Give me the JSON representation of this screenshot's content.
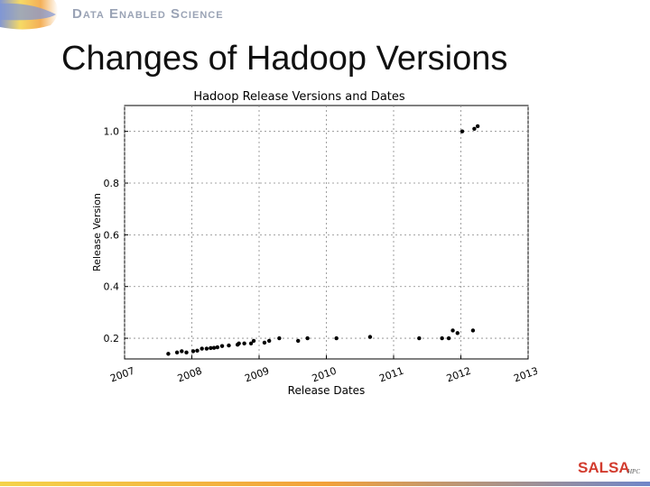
{
  "header": {
    "brand": "Data Enabled Science"
  },
  "slide": {
    "title": "Changes of Hadoop Versions"
  },
  "footer": {
    "logo_text": "SALSA",
    "logo_sub": "HPC"
  },
  "colors": {
    "header_blue": "#6f86c9",
    "header_yellow": "#f4d34a",
    "header_orange": "#f2a13a",
    "brand_gray": "#9aa3b5",
    "logo_red": "#d23b2e",
    "logo_blue": "#2b4f9e",
    "logo_green": "#6aa84f"
  },
  "chart_data": {
    "type": "scatter",
    "title": "Hadoop Release Versions and Dates",
    "xlabel": "Release Dates",
    "ylabel": "Release Version",
    "xlim": [
      2007.0,
      2013.0
    ],
    "ylim": [
      0.12,
      1.1
    ],
    "xticks": [
      "2007",
      "2008",
      "2009",
      "2010",
      "2011",
      "2012",
      "2013"
    ],
    "yticks": [
      "0.2",
      "0.4",
      "0.6",
      "0.8",
      "1.0"
    ],
    "grid": true,
    "points": [
      {
        "x": 2007.65,
        "y": 0.14
      },
      {
        "x": 2007.78,
        "y": 0.145
      },
      {
        "x": 2007.85,
        "y": 0.15
      },
      {
        "x": 2007.92,
        "y": 0.145
      },
      {
        "x": 2008.02,
        "y": 0.15
      },
      {
        "x": 2008.08,
        "y": 0.152
      },
      {
        "x": 2008.15,
        "y": 0.16
      },
      {
        "x": 2008.22,
        "y": 0.16
      },
      {
        "x": 2008.28,
        "y": 0.162
      },
      {
        "x": 2008.33,
        "y": 0.163
      },
      {
        "x": 2008.38,
        "y": 0.165
      },
      {
        "x": 2008.45,
        "y": 0.17
      },
      {
        "x": 2008.55,
        "y": 0.172
      },
      {
        "x": 2008.68,
        "y": 0.175
      },
      {
        "x": 2008.7,
        "y": 0.18
      },
      {
        "x": 2008.78,
        "y": 0.18
      },
      {
        "x": 2008.88,
        "y": 0.18
      },
      {
        "x": 2008.92,
        "y": 0.19
      },
      {
        "x": 2009.08,
        "y": 0.183
      },
      {
        "x": 2009.15,
        "y": 0.19
      },
      {
        "x": 2009.3,
        "y": 0.2
      },
      {
        "x": 2009.58,
        "y": 0.19
      },
      {
        "x": 2009.72,
        "y": 0.2
      },
      {
        "x": 2010.15,
        "y": 0.2
      },
      {
        "x": 2010.65,
        "y": 0.205
      },
      {
        "x": 2011.38,
        "y": 0.2
      },
      {
        "x": 2011.72,
        "y": 0.2
      },
      {
        "x": 2011.82,
        "y": 0.2
      },
      {
        "x": 2011.88,
        "y": 0.23
      },
      {
        "x": 2011.95,
        "y": 0.22
      },
      {
        "x": 2012.02,
        "y": 1.0
      },
      {
        "x": 2012.18,
        "y": 0.23
      },
      {
        "x": 2012.2,
        "y": 1.01
      },
      {
        "x": 2012.25,
        "y": 1.02
      }
    ]
  }
}
